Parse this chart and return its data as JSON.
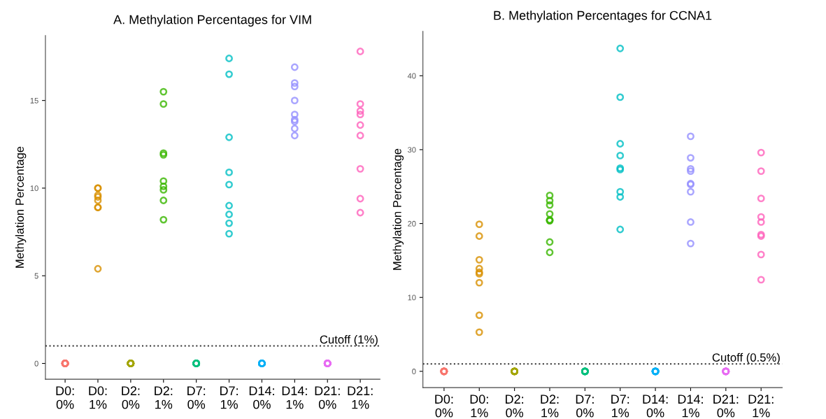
{
  "chart_data": [
    {
      "type": "scatter",
      "title": "A. Methylation Percentages for VIM",
      "ylabel": "Methylation Percentage",
      "categories": [
        "D0:\n0%",
        "D0:\n1%",
        "D2:\n0%",
        "D2:\n1%",
        "D7:\n0%",
        "D7:\n1%",
        "D14:\n0%",
        "D14:\n1%",
        "D21:\n0%",
        "D21:\n1%"
      ],
      "ylim": [
        -0.9,
        18.7
      ],
      "yticks": [
        0,
        5,
        10,
        15
      ],
      "grid": false,
      "legend": false,
      "marker": "circle",
      "ref_lines": [
        {
          "axis": "y",
          "value": 1,
          "label": "Cutoff (1%)",
          "color": "#333333",
          "line_style": "dotted"
        }
      ],
      "series": [
        {
          "color": "#f8766d",
          "x": [
            "D0:\n0%",
            "D0:\n0%",
            "D0:\n0%",
            "D0:\n0%",
            "D0:\n0%",
            "D0:\n0%",
            "D0:\n0%",
            "D0:\n0%"
          ],
          "values": [
            0,
            0,
            0,
            0,
            0,
            0,
            0,
            0
          ]
        },
        {
          "color": "#d89000",
          "x": [
            "D0:\n1%",
            "D0:\n1%",
            "D0:\n1%",
            "D0:\n1%",
            "D0:\n1%",
            "D0:\n1%",
            "D0:\n1%",
            "D0:\n1%"
          ],
          "values": [
            10,
            10,
            9.6,
            9.5,
            9.3,
            8.9,
            8.9,
            5.4
          ]
        },
        {
          "color": "#a3a500",
          "x": [
            "D2:\n0%",
            "D2:\n0%",
            "D2:\n0%",
            "D2:\n0%",
            "D2:\n0%",
            "D2:\n0%",
            "D2:\n0%",
            "D2:\n0%"
          ],
          "values": [
            0,
            0,
            0,
            0,
            0,
            0,
            0,
            0
          ]
        },
        {
          "color": "#39b600",
          "x": [
            "D2:\n1%",
            "D2:\n1%",
            "D2:\n1%",
            "D2:\n1%",
            "D2:\n1%",
            "D2:\n1%",
            "D2:\n1%",
            "D2:\n1%",
            "D2:\n1%"
          ],
          "values": [
            15.5,
            14.8,
            12.0,
            11.9,
            10.4,
            10.1,
            9.9,
            9.3,
            8.2
          ]
        },
        {
          "color": "#00bf7d",
          "x": [
            "D7:\n0%",
            "D7:\n0%",
            "D7:\n0%",
            "D7:\n0%",
            "D7:\n0%",
            "D7:\n0%",
            "D7:\n0%",
            "D7:\n0%"
          ],
          "values": [
            0,
            0,
            0,
            0,
            0,
            0,
            0,
            0
          ]
        },
        {
          "color": "#00bfc4",
          "x": [
            "D7:\n1%",
            "D7:\n1%",
            "D7:\n1%",
            "D7:\n1%",
            "D7:\n1%",
            "D7:\n1%",
            "D7:\n1%",
            "D7:\n1%",
            "D7:\n1%"
          ],
          "values": [
            17.4,
            16.5,
            12.9,
            10.9,
            10.2,
            9.0,
            8.5,
            8.0,
            7.4
          ]
        },
        {
          "color": "#00b0f6",
          "x": [
            "D14:\n0%",
            "D14:\n0%",
            "D14:\n0%",
            "D14:\n0%",
            "D14:\n0%",
            "D14:\n0%",
            "D14:\n0%",
            "D14:\n0%"
          ],
          "values": [
            0,
            0,
            0,
            0,
            0,
            0,
            0,
            0
          ]
        },
        {
          "color": "#9590ff",
          "x": [
            "D14:\n1%",
            "D14:\n1%",
            "D14:\n1%",
            "D14:\n1%",
            "D14:\n1%",
            "D14:\n1%",
            "D14:\n1%",
            "D14:\n1%",
            "D14:\n1%"
          ],
          "values": [
            16.9,
            16.0,
            15.8,
            15.0,
            14.2,
            13.9,
            13.8,
            13.4,
            13.0
          ]
        },
        {
          "color": "#e76bf3",
          "x": [
            "D21:\n0%",
            "D21:\n0%",
            "D21:\n0%",
            "D21:\n0%",
            "D21:\n0%",
            "D21:\n0%",
            "D21:\n0%",
            "D21:\n0%"
          ],
          "values": [
            0,
            0,
            0,
            0,
            0,
            0,
            0,
            0
          ]
        },
        {
          "color": "#ff62bc",
          "x": [
            "D21:\n1%",
            "D21:\n1%",
            "D21:\n1%",
            "D21:\n1%",
            "D21:\n1%",
            "D21:\n1%",
            "D21:\n1%",
            "D21:\n1%",
            "D21:\n1%"
          ],
          "values": [
            17.8,
            14.8,
            14.4,
            14.2,
            13.6,
            13.0,
            11.1,
            9.4,
            8.6
          ]
        }
      ]
    },
    {
      "type": "scatter",
      "title": "B. Methylation Percentages for CCNA1",
      "ylabel": "Methylation Percentage",
      "categories": [
        "D0:\n0%",
        "D0:\n1%",
        "D2:\n0%",
        "D2:\n1%",
        "D7:\n0%",
        "D7:\n1%",
        "D14:\n0%",
        "D14:\n1%",
        "D21:\n0%",
        "D21:\n1%"
      ],
      "ylim": [
        -2.2,
        46
      ],
      "yticks": [
        0,
        10,
        20,
        30,
        40
      ],
      "grid": false,
      "legend": false,
      "marker": "circle",
      "ref_lines": [
        {
          "axis": "y",
          "value": 1,
          "label": "Cutoff (0.5%)",
          "color": "#333333",
          "line_style": "dotted"
        }
      ],
      "series": [
        {
          "color": "#f8766d",
          "x": [
            "D0:\n0%",
            "D0:\n0%",
            "D0:\n0%",
            "D0:\n0%",
            "D0:\n0%",
            "D0:\n0%",
            "D0:\n0%",
            "D0:\n0%"
          ],
          "values": [
            0,
            0,
            0,
            0,
            0,
            0,
            0,
            0
          ]
        },
        {
          "color": "#d89000",
          "x": [
            "D0:\n1%",
            "D0:\n1%",
            "D0:\n1%",
            "D0:\n1%",
            "D0:\n1%",
            "D0:\n1%",
            "D0:\n1%",
            "D0:\n1%",
            "D0:\n1%"
          ],
          "values": [
            19.9,
            18.3,
            15.1,
            13.9,
            13.4,
            13.2,
            12.0,
            7.6,
            5.3
          ]
        },
        {
          "color": "#a3a500",
          "x": [
            "D2:\n0%",
            "D2:\n0%",
            "D2:\n0%",
            "D2:\n0%",
            "D2:\n0%",
            "D2:\n0%",
            "D2:\n0%",
            "D2:\n0%"
          ],
          "values": [
            0,
            0,
            0,
            0,
            0,
            0,
            0,
            0
          ]
        },
        {
          "color": "#39b600",
          "x": [
            "D2:\n1%",
            "D2:\n1%",
            "D2:\n1%",
            "D2:\n1%",
            "D2:\n1%",
            "D2:\n1%",
            "D2:\n1%",
            "D2:\n1%",
            "D2:\n1%"
          ],
          "values": [
            23.8,
            23.1,
            22.5,
            21.3,
            20.5,
            20.4,
            20.4,
            17.5,
            16.1
          ]
        },
        {
          "color": "#00bf7d",
          "x": [
            "D7:\n0%",
            "D7:\n0%",
            "D7:\n0%",
            "D7:\n0%",
            "D7:\n0%",
            "D7:\n0%",
            "D7:\n0%",
            "D7:\n0%"
          ],
          "values": [
            0,
            0,
            0,
            0,
            0,
            0,
            0,
            0
          ]
        },
        {
          "color": "#00bfc4",
          "x": [
            "D7:\n1%",
            "D7:\n1%",
            "D7:\n1%",
            "D7:\n1%",
            "D7:\n1%",
            "D7:\n1%",
            "D7:\n1%",
            "D7:\n1%",
            "D7:\n1%"
          ],
          "values": [
            43.7,
            37.1,
            30.8,
            29.2,
            27.5,
            27.3,
            24.3,
            23.6,
            19.2
          ]
        },
        {
          "color": "#00b0f6",
          "x": [
            "D14:\n0%",
            "D14:\n0%",
            "D14:\n0%",
            "D14:\n0%",
            "D14:\n0%",
            "D14:\n0%",
            "D14:\n0%",
            "D14:\n0%"
          ],
          "values": [
            0,
            0,
            0,
            0,
            0,
            0,
            0,
            0
          ]
        },
        {
          "color": "#9590ff",
          "x": [
            "D14:\n1%",
            "D14:\n1%",
            "D14:\n1%",
            "D14:\n1%",
            "D14:\n1%",
            "D14:\n1%",
            "D14:\n1%",
            "D14:\n1%",
            "D14:\n1%"
          ],
          "values": [
            31.8,
            28.9,
            27.4,
            27.1,
            25.4,
            25.3,
            24.3,
            20.2,
            17.3
          ]
        },
        {
          "color": "#e76bf3",
          "x": [
            "D21:\n0%",
            "D21:\n0%",
            "D21:\n0%",
            "D21:\n0%",
            "D21:\n0%",
            "D21:\n0%",
            "D21:\n0%",
            "D21:\n0%"
          ],
          "values": [
            0,
            0,
            0,
            0,
            0,
            0,
            0,
            0
          ]
        },
        {
          "color": "#ff62bc",
          "x": [
            "D21:\n1%",
            "D21:\n1%",
            "D21:\n1%",
            "D21:\n1%",
            "D21:\n1%",
            "D21:\n1%",
            "D21:\n1%",
            "D21:\n1%",
            "D21:\n1%"
          ],
          "values": [
            29.6,
            27.1,
            23.4,
            20.9,
            20.2,
            18.5,
            18.3,
            15.8,
            12.4
          ]
        }
      ]
    }
  ]
}
